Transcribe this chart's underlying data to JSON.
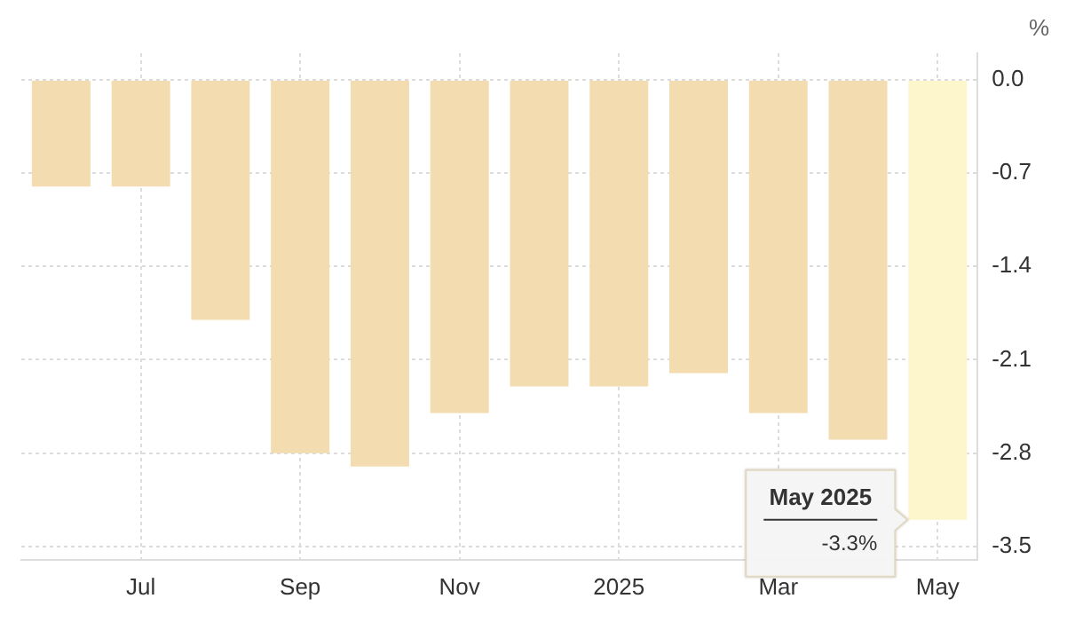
{
  "chart_data": {
    "type": "bar",
    "ylabel": "%",
    "categories": [
      null,
      "Jul",
      null,
      "Sep",
      null,
      "Nov",
      null,
      "2025",
      null,
      "Mar",
      null,
      "May"
    ],
    "values": [
      -0.8,
      -0.8,
      -1.8,
      -2.8,
      -2.9,
      -2.5,
      -2.3,
      -2.3,
      -2.2,
      -2.5,
      -2.7,
      -3.3
    ],
    "colors": [
      "#f2dcb0",
      "#f2dcb0",
      "#f2dcb0",
      "#f2dcb0",
      "#f2dcb0",
      "#f2dcb0",
      "#f2dcb0",
      "#f2dcb0",
      "#f2dcb0",
      "#f2dcb0",
      "#f2dcb0",
      "#fdf5cb"
    ],
    "ylim": [
      -3.6,
      0.2
    ],
    "yticks": [
      {
        "value": 0,
        "label": "0.0"
      },
      -0.7,
      -1.4,
      -2.1,
      -2.8,
      -3.5
    ],
    "grid": true,
    "legend": false,
    "annotations": [
      {
        "text": "May 2025",
        "x": "May",
        "y": -3.3
      },
      {
        "text": "-3.3%",
        "x": "May",
        "y": -3.3
      }
    ]
  }
}
